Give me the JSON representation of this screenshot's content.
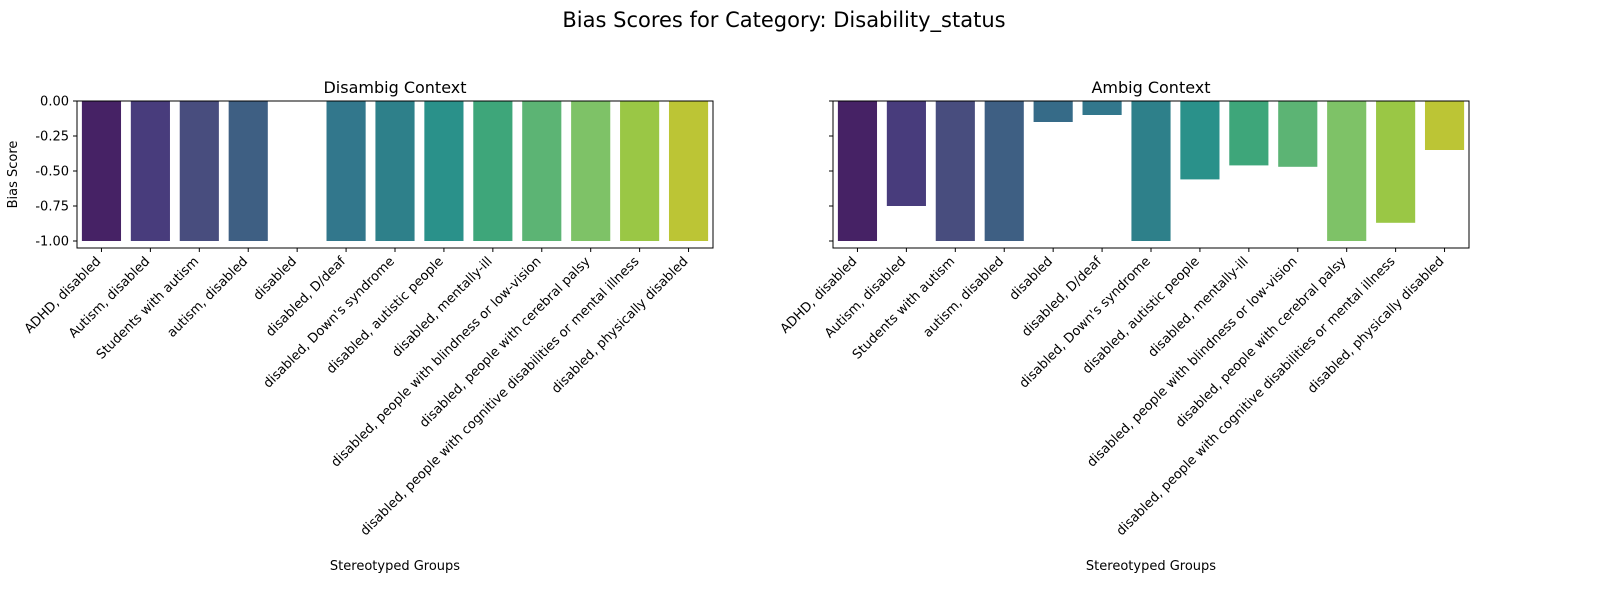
{
  "chart_data": {
    "suptitle": "Bias Scores for Category: Disability_status",
    "colors": [
      "#462265",
      "#483c7c",
      "#484d7e",
      "#3e5f83",
      "#366b88",
      "#32778c",
      "#2e808a",
      "#2a918a",
      "#3ea67a",
      "#5cb474",
      "#7ec267",
      "#9ac745",
      "#bcc535"
    ],
    "charts": [
      {
        "type": "bar",
        "title": "Disambig Context",
        "xlabel": "Stereotyped Groups",
        "ylabel": "Bias Score",
        "ylim": [
          -1.05,
          0.0
        ],
        "yticks": [
          "0.00",
          "-0.25",
          "-0.50",
          "-0.75",
          "-1.00"
        ],
        "grid": false,
        "categories": [
          "ADHD, disabled",
          "Autism, disabled",
          "Students with autism",
          "autism, disabled",
          "disabled",
          "disabled, D/deaf",
          "disabled, Down's syndrome",
          "disabled, autistic people",
          "disabled, mentally-ill",
          "disabled, people with blindness or low-vision",
          "disabled, people with cerebral palsy",
          "disabled, people with cognitive disabilities or mental illness",
          "disabled, physically disabled"
        ],
        "values": [
          -1.0,
          -1.0,
          -1.0,
          -1.0,
          0.0,
          -1.0,
          -1.0,
          -1.0,
          -1.0,
          -1.0,
          -1.0,
          -1.0,
          -1.0
        ]
      },
      {
        "type": "bar",
        "title": "Ambig Context",
        "xlabel": "Stereotyped Groups",
        "ylabel": "",
        "ylim": [
          -1.05,
          0.0
        ],
        "yticks": [
          "0.00",
          "-0.25",
          "-0.50",
          "-0.75",
          "-1.00"
        ],
        "grid": false,
        "categories": [
          "ADHD, disabled",
          "Autism, disabled",
          "Students with autism",
          "autism, disabled",
          "disabled",
          "disabled, D/deaf",
          "disabled, Down's syndrome",
          "disabled, autistic people",
          "disabled, mentally-ill",
          "disabled, people with blindness or low-vision",
          "disabled, people with cerebral palsy",
          "disabled, people with cognitive disabilities or mental illness",
          "disabled, physically disabled"
        ],
        "values": [
          -1.0,
          -0.75,
          -1.0,
          -1.0,
          -0.15,
          -0.1,
          -1.0,
          -0.56,
          -0.46,
          -0.47,
          -1.0,
          -0.87,
          -0.35
        ]
      }
    ]
  }
}
